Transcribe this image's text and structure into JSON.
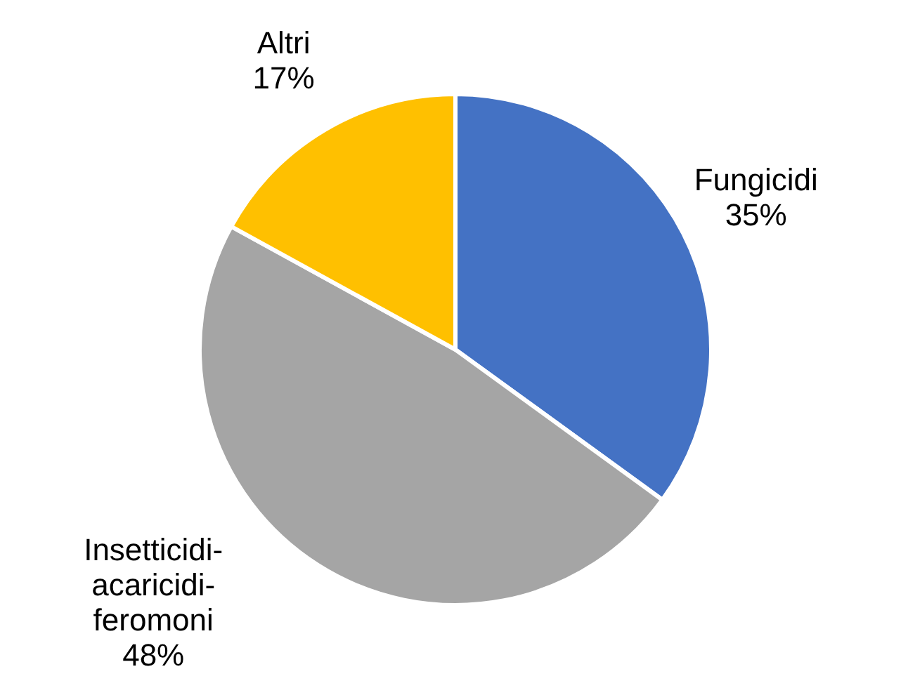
{
  "chart_data": {
    "type": "pie",
    "categories": [
      "Fungicidi",
      "Insetticidi-acaricidi-feromoni",
      "Altri"
    ],
    "values": [
      35,
      48,
      17
    ],
    "colors": [
      "#4472c4",
      "#a5a5a5",
      "#ffc000"
    ],
    "value_labels": [
      "35%",
      "48%",
      "17%"
    ]
  }
}
